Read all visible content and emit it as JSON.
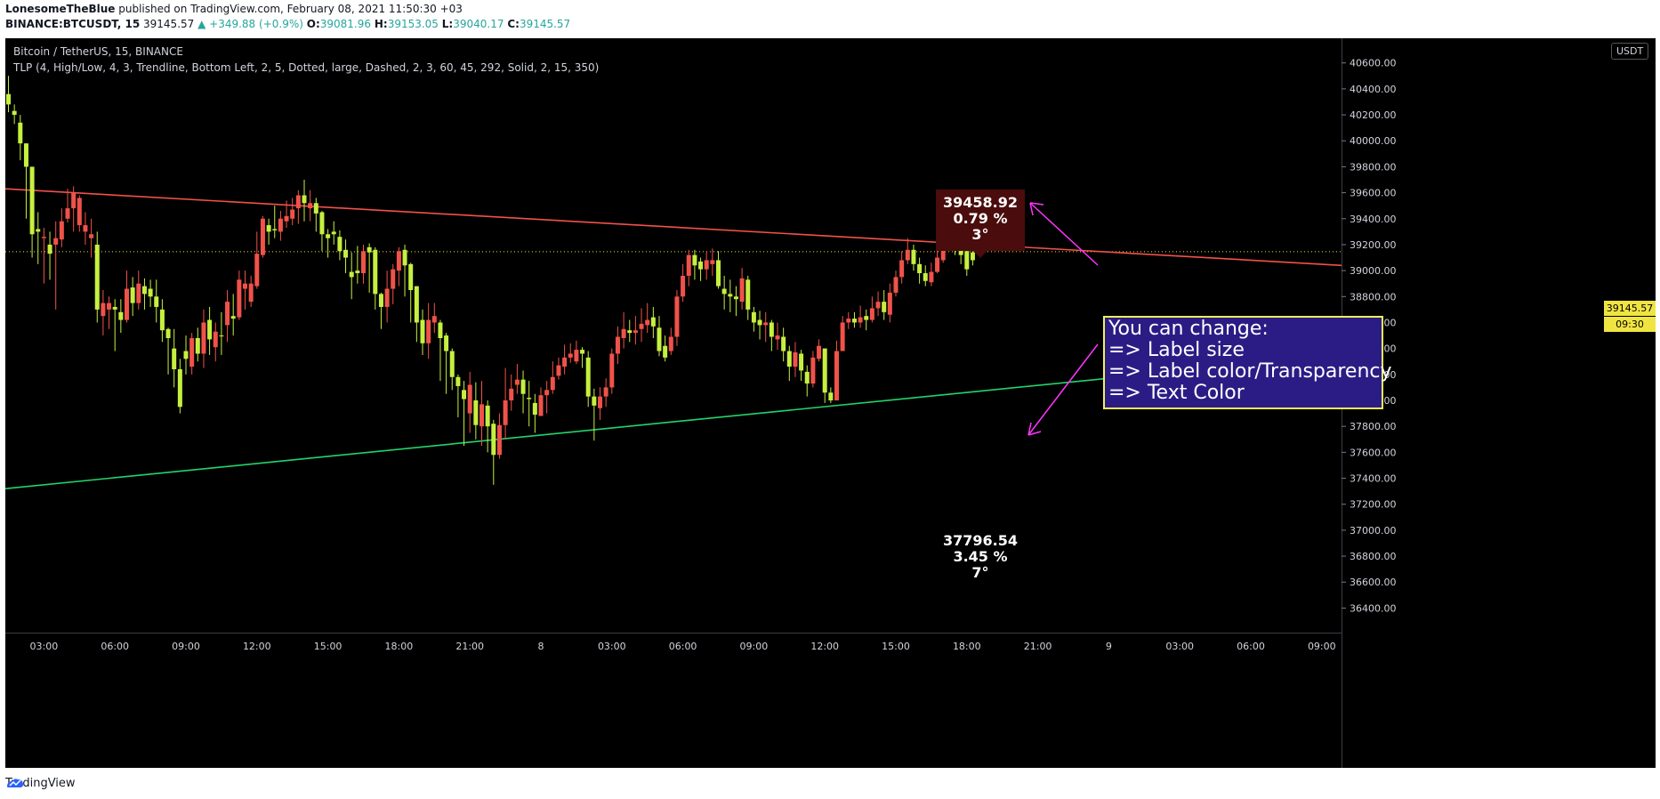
{
  "header": {
    "author": "LonesomeTheBlue",
    "published_text": "published on TradingView.com, February 08, 2021 11:50:30 +03",
    "symbol_line": "BINANCE:BTCUSDT, 15",
    "last": "39145.57",
    "change": "▲ +349.88 (+0.9%)",
    "o_label": "O:",
    "o": "39081.96",
    "h_label": "H:",
    "h": "39153.05",
    "l_label": "L:",
    "l": "39040.17",
    "c_label": "C:",
    "c": "39145.57"
  },
  "chart_title": "Bitcoin / TetherUS, 15, BINANCE",
  "indicator": "TLP (4, High/Low, 4, 3, Trendline, Bottom Left, 2, 5, Dotted, large, Dashed, 2, 3, 60, 45, 292, Solid, 2, 15, 350)",
  "currency_badge": "USDT",
  "current_price_tag": "39145.57",
  "countdown_tag": "09:30",
  "note": {
    "lines": [
      "You can change:",
      "=> Label size",
      "=> Label color/Transparency",
      "=> Text Color"
    ]
  },
  "upper_label": {
    "price": "39458.92",
    "pct": "0.79 %",
    "angle": "3°"
  },
  "lower_label": {
    "price": "37796.54",
    "pct": "3.45 %",
    "angle": "7°"
  },
  "footer": {
    "brand": "TradingView"
  },
  "colors": {
    "background": "#000000",
    "up_candle": "#c6f03f",
    "down_candle": "#f0524a",
    "resistance": "#f0524a",
    "support": "#22d46b",
    "arrow": "#ff33ff",
    "note_bg": "#2b1c85",
    "note_border": "#f5f05a"
  },
  "chart_data": {
    "type": "candlestick",
    "title": "Bitcoin / TetherUS, 15, BINANCE",
    "x_ticks": [
      "03:00",
      "06:00",
      "09:00",
      "12:00",
      "15:00",
      "18:00",
      "21:00",
      "8",
      "03:00",
      "06:00",
      "09:00",
      "12:00",
      "15:00",
      "18:00",
      "21:00",
      "9",
      "03:00",
      "06:00",
      "09:00"
    ],
    "y_ticks": [
      40600,
      40400,
      40200,
      40000,
      39800,
      39600,
      39400,
      39200,
      39000,
      38800,
      38600,
      38400,
      38200,
      38000,
      37800,
      37600,
      37400,
      37200,
      37000,
      36800,
      36600,
      36400
    ],
    "ylim": [
      36300,
      40790
    ],
    "y_tick_labels": [
      "40600.00",
      "40400.00",
      "40200.00",
      "40000.00",
      "39800.00",
      "39600.00",
      "39400.00",
      "39200.00",
      "39000.00",
      "38800.00",
      "38600.00",
      "38400.00",
      "38200.00",
      "38000.00",
      "37800.00",
      "37600.00",
      "37400.00",
      "37200.00",
      "37000.00",
      "36800.00",
      "36600.00",
      "36400.00"
    ],
    "bars_per_tick": 12,
    "first_tick_bar": 6,
    "current_price": 39145.57,
    "candles": [
      [
        40280,
        40500,
        40220,
        40360
      ],
      [
        40200,
        40280,
        40130,
        40230
      ],
      [
        39980,
        40200,
        39850,
        40140
      ],
      [
        39800,
        39980,
        39400,
        39980
      ],
      [
        39280,
        39800,
        39100,
        39800
      ],
      [
        39300,
        39450,
        39050,
        39320
      ],
      [
        39260,
        39330,
        38900,
        39250
      ],
      [
        39130,
        39300,
        38930,
        39200
      ],
      [
        39250,
        39380,
        38700,
        39200
      ],
      [
        39380,
        39480,
        39180,
        39240
      ],
      [
        39480,
        39630,
        39370,
        39400
      ],
      [
        39600,
        39650,
        39300,
        39480
      ],
      [
        39560,
        39580,
        39300,
        39350
      ],
      [
        39350,
        39450,
        39200,
        39300
      ],
      [
        39280,
        39400,
        39100,
        39250
      ],
      [
        38700,
        39300,
        38600,
        39200
      ],
      [
        38750,
        38850,
        38500,
        38650
      ],
      [
        38750,
        38800,
        38550,
        38700
      ],
      [
        38700,
        38780,
        38380,
        38720
      ],
      [
        38620,
        38780,
        38520,
        38680
      ],
      [
        38860,
        39000,
        38600,
        38620
      ],
      [
        38750,
        38950,
        38650,
        38870
      ],
      [
        38900,
        39000,
        38700,
        38750
      ],
      [
        38820,
        38940,
        38700,
        38880
      ],
      [
        38800,
        38930,
        38720,
        38860
      ],
      [
        38720,
        38930,
        38600,
        38800
      ],
      [
        38540,
        38780,
        38450,
        38700
      ],
      [
        38480,
        38560,
        38200,
        38550
      ],
      [
        38240,
        38550,
        38100,
        38400
      ],
      [
        37950,
        38320,
        37900,
        38240
      ],
      [
        38320,
        38500,
        38200,
        38380
      ],
      [
        38480,
        38520,
        38200,
        38260
      ],
      [
        38360,
        38560,
        38300,
        38480
      ],
      [
        38600,
        38700,
        38250,
        38360
      ],
      [
        38470,
        38720,
        38350,
        38620
      ],
      [
        38530,
        38600,
        38300,
        38410
      ],
      [
        38500,
        38680,
        38350,
        38500
      ],
      [
        38760,
        38850,
        38450,
        38580
      ],
      [
        38630,
        38820,
        38500,
        38650
      ],
      [
        38930,
        39000,
        38620,
        38640
      ],
      [
        38900,
        39000,
        38700,
        38860
      ],
      [
        38900,
        38960,
        38720,
        38760
      ],
      [
        39130,
        39300,
        38860,
        38880
      ],
      [
        39400,
        39420,
        39100,
        39120
      ],
      [
        39300,
        39400,
        39200,
        39350
      ],
      [
        39310,
        39500,
        39250,
        39320
      ],
      [
        39400,
        39460,
        39230,
        39300
      ],
      [
        39420,
        39540,
        39330,
        39380
      ],
      [
        39470,
        39560,
        39350,
        39400
      ],
      [
        39580,
        39620,
        39360,
        39480
      ],
      [
        39520,
        39700,
        39380,
        39580
      ],
      [
        39520,
        39620,
        39380,
        39480
      ],
      [
        39440,
        39560,
        39300,
        39520
      ],
      [
        39280,
        39460,
        39150,
        39450
      ],
      [
        39250,
        39320,
        39100,
        39280
      ],
      [
        39280,
        39380,
        39200,
        39300
      ],
      [
        39150,
        39310,
        39080,
        39260
      ],
      [
        39100,
        39240,
        38980,
        39160
      ],
      [
        38950,
        39140,
        38780,
        38990
      ],
      [
        38980,
        39190,
        38900,
        39000
      ],
      [
        39150,
        39200,
        38900,
        38980
      ],
      [
        39140,
        39210,
        38830,
        39180
      ],
      [
        38820,
        39180,
        38700,
        39160
      ],
      [
        38720,
        38830,
        38550,
        38820
      ],
      [
        38860,
        39000,
        38600,
        38720
      ],
      [
        39010,
        39050,
        38740,
        38860
      ],
      [
        39150,
        39180,
        38880,
        39000
      ],
      [
        39040,
        39200,
        38800,
        39160
      ],
      [
        38850,
        39060,
        38600,
        39050
      ],
      [
        38600,
        38880,
        38450,
        38880
      ],
      [
        38440,
        38700,
        38350,
        38620
      ],
      [
        38620,
        38750,
        38320,
        38440
      ],
      [
        38650,
        38750,
        38520,
        38600
      ],
      [
        38480,
        38620,
        38150,
        38600
      ],
      [
        38380,
        38520,
        38050,
        38500
      ],
      [
        38180,
        38400,
        38080,
        38380
      ],
      [
        38110,
        38200,
        37870,
        38180
      ],
      [
        38010,
        38150,
        37650,
        38080
      ],
      [
        38120,
        38220,
        37750,
        37900
      ],
      [
        37810,
        38140,
        37700,
        38000
      ],
      [
        37970,
        38150,
        37650,
        37800
      ],
      [
        37800,
        38000,
        37600,
        37960
      ],
      [
        37580,
        37850,
        37350,
        37820
      ],
      [
        37810,
        37900,
        37550,
        37580
      ],
      [
        38000,
        38250,
        37700,
        37810
      ],
      [
        38090,
        38200,
        37920,
        38000
      ],
      [
        38160,
        38280,
        38050,
        38120
      ],
      [
        38050,
        38230,
        37900,
        38160
      ],
      [
        38010,
        38150,
        37800,
        38020
      ],
      [
        37890,
        38050,
        37750,
        37980
      ],
      [
        38040,
        38100,
        37880,
        37880
      ],
      [
        38080,
        38150,
        37900,
        38040
      ],
      [
        38180,
        38300,
        38050,
        38080
      ],
      [
        38270,
        38330,
        38160,
        38190
      ],
      [
        38330,
        38430,
        38200,
        38260
      ],
      [
        38360,
        38440,
        38290,
        38330
      ],
      [
        38390,
        38460,
        38280,
        38300
      ],
      [
        38360,
        38410,
        38250,
        38390
      ],
      [
        38030,
        38380,
        37950,
        38330
      ],
      [
        37960,
        38090,
        37690,
        38030
      ],
      [
        38030,
        38100,
        37850,
        37940
      ],
      [
        38100,
        38170,
        37950,
        38030
      ],
      [
        38360,
        38400,
        38050,
        38100
      ],
      [
        38490,
        38570,
        38280,
        38360
      ],
      [
        38550,
        38680,
        38400,
        38480
      ],
      [
        38520,
        38620,
        38450,
        38540
      ],
      [
        38540,
        38650,
        38430,
        38520
      ],
      [
        38590,
        38710,
        38450,
        38550
      ],
      [
        38620,
        38750,
        38520,
        38580
      ],
      [
        38570,
        38720,
        38480,
        38640
      ],
      [
        38380,
        38650,
        38340,
        38560
      ],
      [
        38330,
        38500,
        38300,
        38420
      ],
      [
        38490,
        38560,
        38350,
        38380
      ],
      [
        38800,
        38850,
        38420,
        38490
      ],
      [
        38960,
        39050,
        38760,
        38800
      ],
      [
        39120,
        39160,
        38880,
        38960
      ],
      [
        39040,
        39160,
        38930,
        39120
      ],
      [
        39010,
        39100,
        38920,
        39070
      ],
      [
        39080,
        39150,
        38930,
        39010
      ],
      [
        39080,
        39170,
        38960,
        39050
      ],
      [
        38880,
        39150,
        38860,
        39080
      ],
      [
        38820,
        38960,
        38700,
        38860
      ],
      [
        38800,
        38930,
        38680,
        38820
      ],
      [
        38780,
        38880,
        38650,
        38800
      ],
      [
        38940,
        39020,
        38700,
        38760
      ],
      [
        38700,
        38960,
        38620,
        38930
      ],
      [
        38600,
        38720,
        38530,
        38680
      ],
      [
        38580,
        38690,
        38470,
        38620
      ],
      [
        38600,
        38680,
        38450,
        38580
      ],
      [
        38490,
        38620,
        38380,
        38600
      ],
      [
        38500,
        38600,
        38390,
        38470
      ],
      [
        38380,
        38560,
        38300,
        38490
      ],
      [
        38260,
        38420,
        38150,
        38380
      ],
      [
        38370,
        38450,
        38180,
        38260
      ],
      [
        38230,
        38390,
        38150,
        38360
      ],
      [
        38130,
        38270,
        38030,
        38220
      ],
      [
        38330,
        38380,
        38100,
        38130
      ],
      [
        38420,
        38470,
        38300,
        38320
      ],
      [
        38060,
        38400,
        37980,
        38400
      ],
      [
        38000,
        38100,
        37980,
        38060
      ],
      [
        38380,
        38460,
        38000,
        38000
      ],
      [
        38600,
        38650,
        38380,
        38380
      ],
      [
        38630,
        38680,
        38550,
        38600
      ],
      [
        38600,
        38680,
        38560,
        38630
      ],
      [
        38640,
        38730,
        38560,
        38600
      ],
      [
        38620,
        38700,
        38540,
        38650
      ],
      [
        38710,
        38800,
        38600,
        38620
      ],
      [
        38760,
        38840,
        38650,
        38710
      ],
      [
        38680,
        38850,
        38620,
        38760
      ],
      [
        38830,
        38900,
        38600,
        38660
      ],
      [
        38950,
        39000,
        38800,
        38830
      ],
      [
        39080,
        39150,
        38900,
        38950
      ],
      [
        39160,
        39250,
        39050,
        39080
      ],
      [
        39050,
        39200,
        39000,
        39160
      ],
      [
        38980,
        39100,
        38900,
        39050
      ],
      [
        38920,
        39040,
        38880,
        38980
      ],
      [
        38990,
        39060,
        38880,
        38910
      ],
      [
        39100,
        39180,
        38980,
        38990
      ],
      [
        39250,
        39300,
        39060,
        39080
      ],
      [
        39270,
        39380,
        39180,
        39250
      ],
      [
        39180,
        39330,
        39120,
        39280
      ],
      [
        39120,
        39270,
        39050,
        39200
      ],
      [
        39010,
        39180,
        38960,
        39150
      ],
      [
        39080,
        39150,
        39040,
        39140
      ]
    ],
    "trendlines": [
      {
        "name": "",
        "points": [
          [
            0.0,
            39630
          ],
          [
            1.0,
            39040
          ]
        ]
      },
      {
        "name": "",
        "points": [
          [
            0.0,
            37320
          ],
          [
            1.0,
            38350
          ]
        ]
      }
    ],
    "annotations": [
      "39458.92 / 0.79 % / 3°",
      "37796.54 / 3.45 % / 7°"
    ]
  }
}
